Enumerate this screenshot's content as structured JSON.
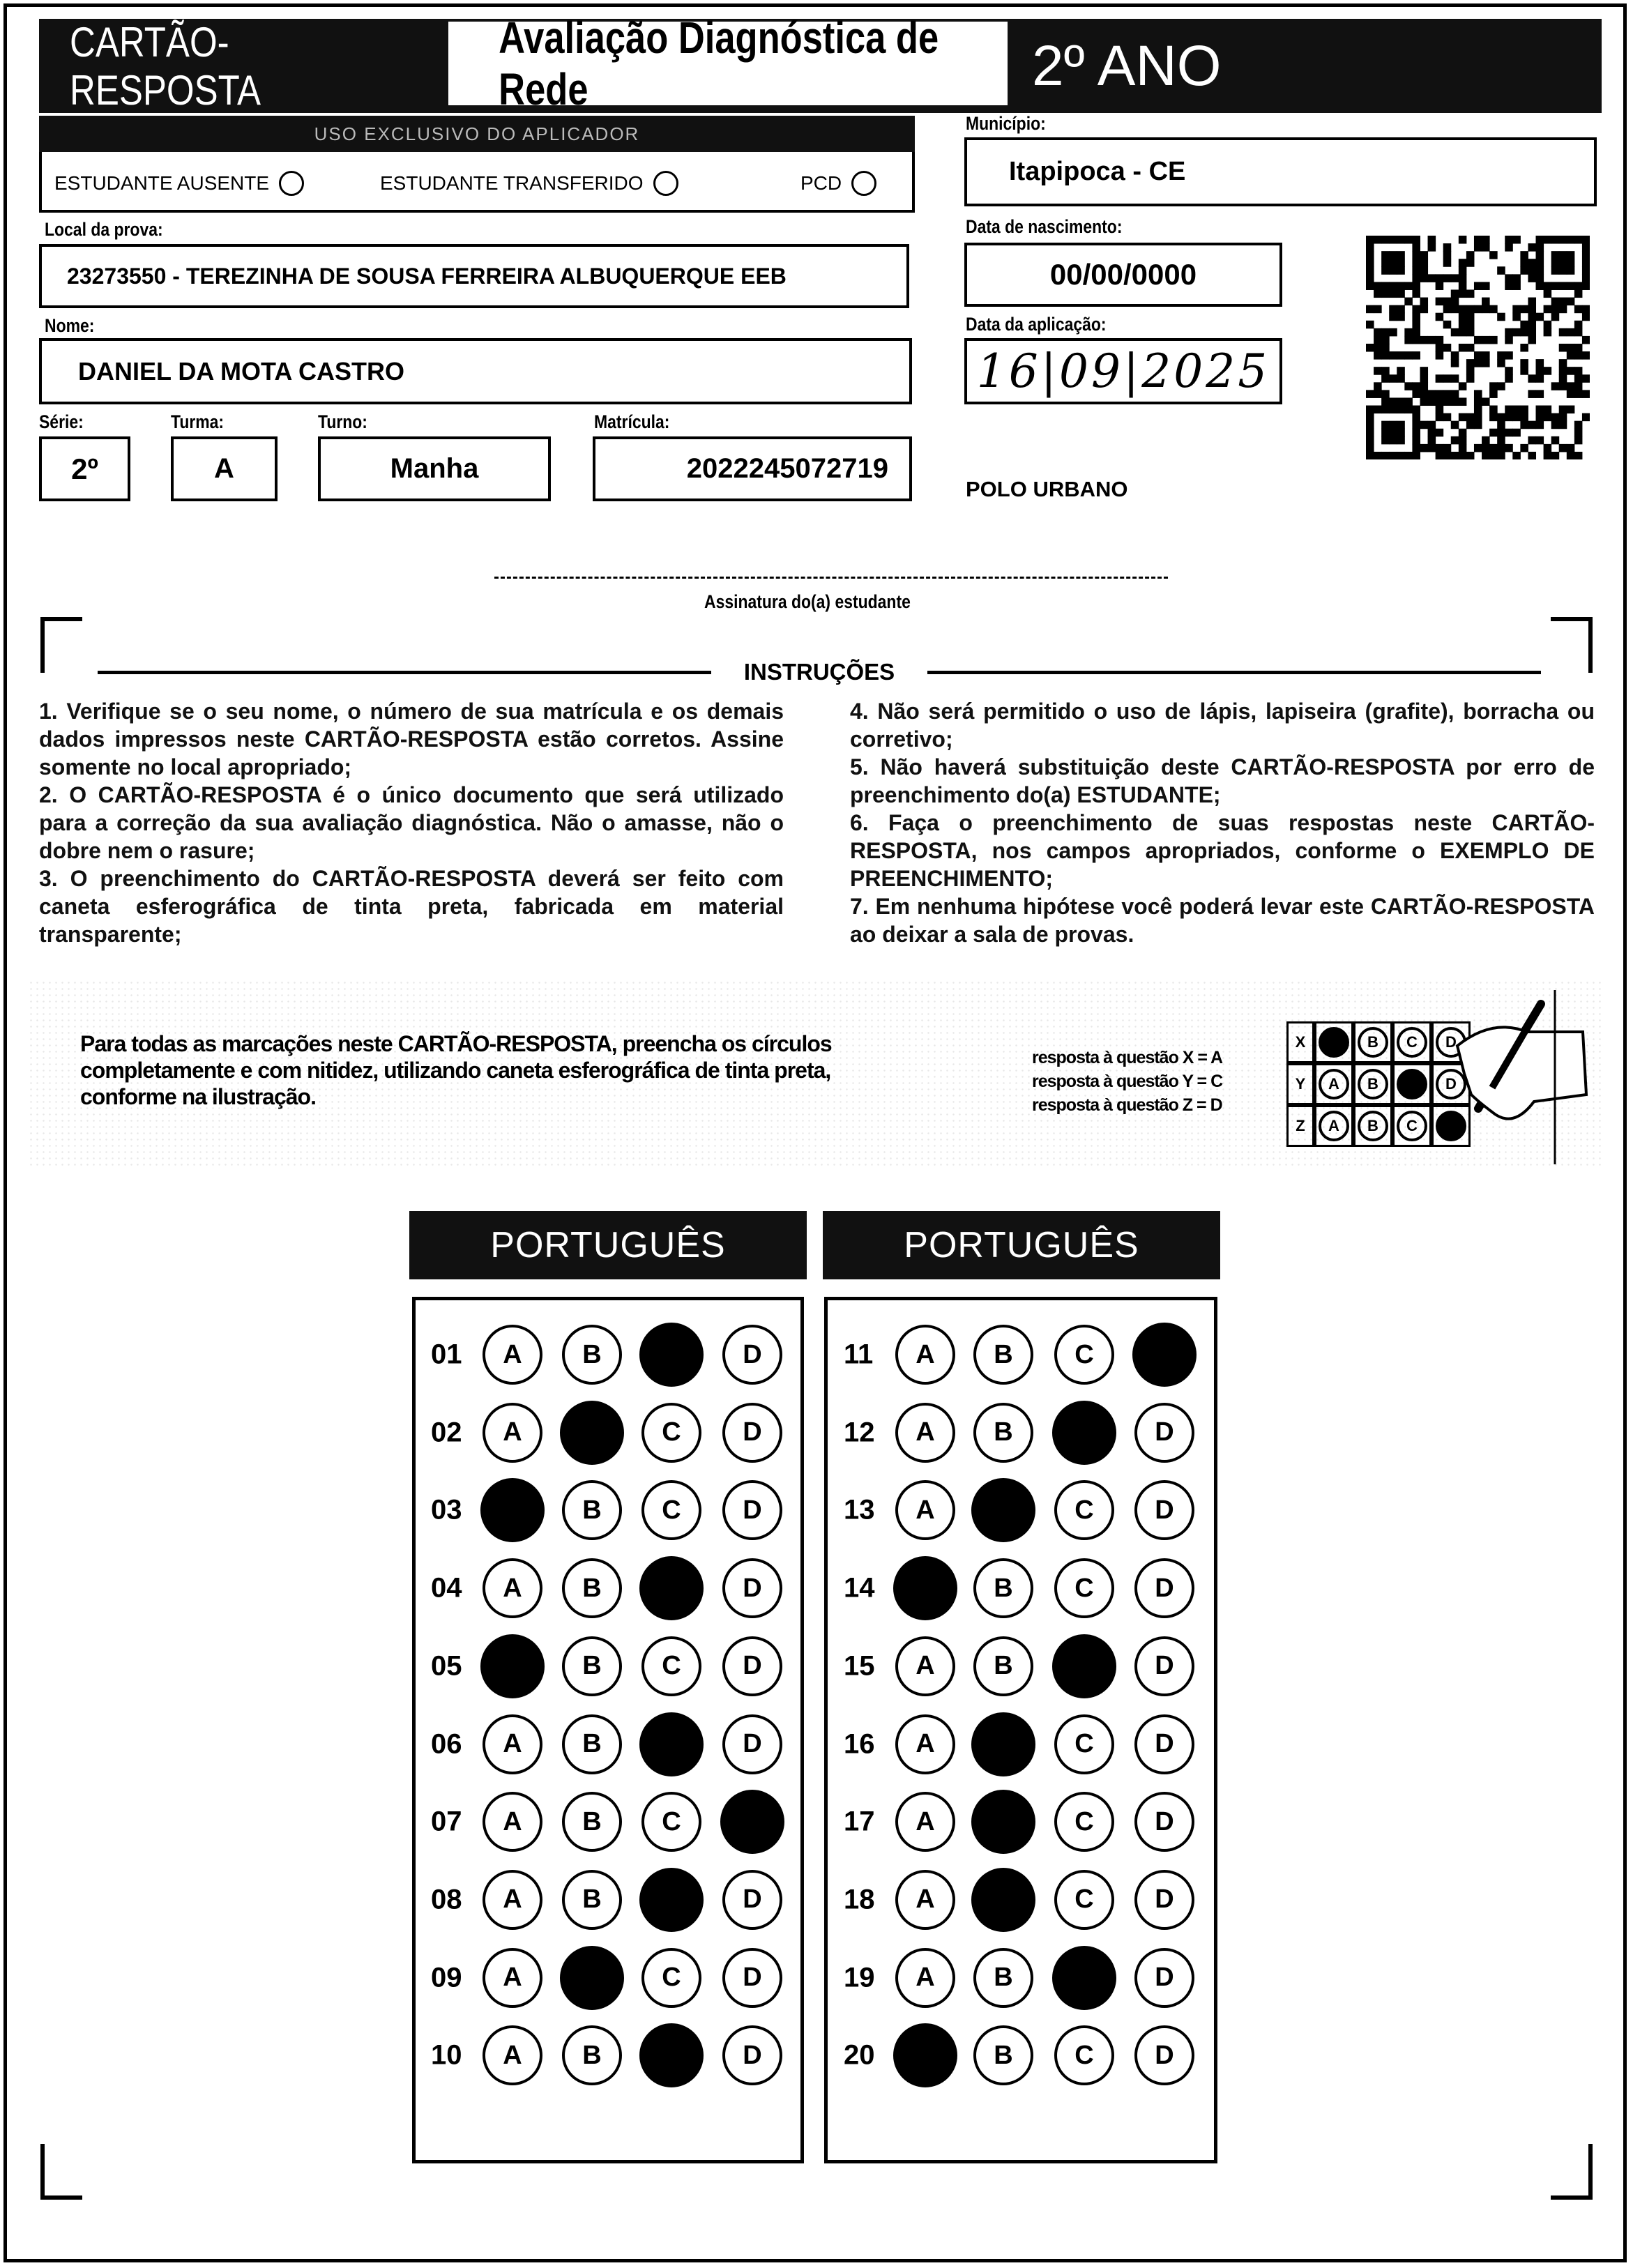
{
  "header": {
    "card_label": "CARTÃO-RESPOSTA",
    "exam_title": "Avaliação Diagnóstica de Rede",
    "grade": "2º ANO"
  },
  "applicator": {
    "title": "USO EXCLUSIVO DO APLICADOR",
    "options": [
      {
        "label": "ESTUDANTE AUSENTE",
        "checked": false
      },
      {
        "label": "ESTUDANTE TRANSFERIDO",
        "checked": false
      },
      {
        "label": "PCD",
        "checked": false
      }
    ]
  },
  "fields": {
    "local_label": "Local da prova:",
    "local": "23273550 - TEREZINHA DE SOUSA FERREIRA ALBUQUERQUE EEB",
    "nome_label": "Nome:",
    "nome": "DANIEL DA MOTA CASTRO",
    "serie_label": "Série:",
    "serie": "2º",
    "turma_label": "Turma:",
    "turma": "A",
    "turno_label": "Turno:",
    "turno": "Manha",
    "matricula_label": "Matrícula:",
    "matricula": "2022245072719",
    "municipio_label": "Município:",
    "municipio": "Itapipoca - CE",
    "nascimento_label": "Data de nascimento:",
    "nascimento": "00/00/0000",
    "aplicacao_label": "Data da aplicação:",
    "aplicacao": "16|09|2025",
    "polo": "POLO URBANO"
  },
  "signature_label": "Assinatura do(a) estudante",
  "instructions": {
    "title": "INSTRUÇÕES",
    "left": "1. Verifique se o seu nome, o número de sua matrícula e os demais dados impressos neste CARTÃO-RESPOSTA estão corretos. Assine somente no local apropriado;\n2. O CARTÃO-RESPOSTA é o único documento que será utilizado para a correção da sua avaliação diagnóstica. Não o amasse, não o dobre nem o rasure;\n3. O preenchimento do CARTÃO-RESPOSTA deverá ser feito com caneta esferográfica de tinta preta, fabricada em material transparente;",
    "right": "4. Não será permitido o uso de lápis, lapiseira (grafite), borracha ou corretivo;\n5. Não haverá substituição deste CARTÃO-RESPOSTA por erro de preenchimento do(a) ESTUDANTE;\n6. Faça o preenchimento de suas respostas neste CARTÃO-RESPOSTA, nos campos apropriados, conforme o EXEMPLO DE PREENCHIMENTO;\n7. Em nenhuma hipótese você poderá levar este CARTÃO-RESPOSTA ao deixar a sala de provas."
  },
  "example": {
    "text": "Para todas as marcações neste CARTÃO-RESPOSTA, preencha os círculos completamente e com nitidez, utilizando caneta esferográfica de tinta preta, conforme na ilustração.",
    "legend": [
      "resposta à questão X = A",
      "resposta à questão Y = C",
      "resposta à questão Z = D"
    ],
    "rows": [
      {
        "label": "X",
        "answer": "A"
      },
      {
        "label": "Y",
        "answer": "C"
      },
      {
        "label": "Z",
        "answer": "D"
      }
    ],
    "options": [
      "A",
      "B",
      "C",
      "D"
    ]
  },
  "answer_sheet": {
    "options": [
      "A",
      "B",
      "C",
      "D"
    ],
    "blocks": [
      {
        "title": "PORTUGUÊS",
        "questions": [
          {
            "n": "01",
            "answer": "C"
          },
          {
            "n": "02",
            "answer": "B"
          },
          {
            "n": "03",
            "answer": "A"
          },
          {
            "n": "04",
            "answer": "C"
          },
          {
            "n": "05",
            "answer": "A"
          },
          {
            "n": "06",
            "answer": "C"
          },
          {
            "n": "07",
            "answer": "D"
          },
          {
            "n": "08",
            "answer": "C"
          },
          {
            "n": "09",
            "answer": "B"
          },
          {
            "n": "10",
            "answer": "C"
          }
        ]
      },
      {
        "title": "PORTUGUÊS",
        "questions": [
          {
            "n": "11",
            "answer": "D"
          },
          {
            "n": "12",
            "answer": "C"
          },
          {
            "n": "13",
            "answer": "B"
          },
          {
            "n": "14",
            "answer": "A"
          },
          {
            "n": "15",
            "answer": "C"
          },
          {
            "n": "16",
            "answer": "B"
          },
          {
            "n": "17",
            "answer": "B"
          },
          {
            "n": "18",
            "answer": "B"
          },
          {
            "n": "19",
            "answer": "C"
          },
          {
            "n": "20",
            "answer": "A"
          }
        ]
      }
    ]
  }
}
